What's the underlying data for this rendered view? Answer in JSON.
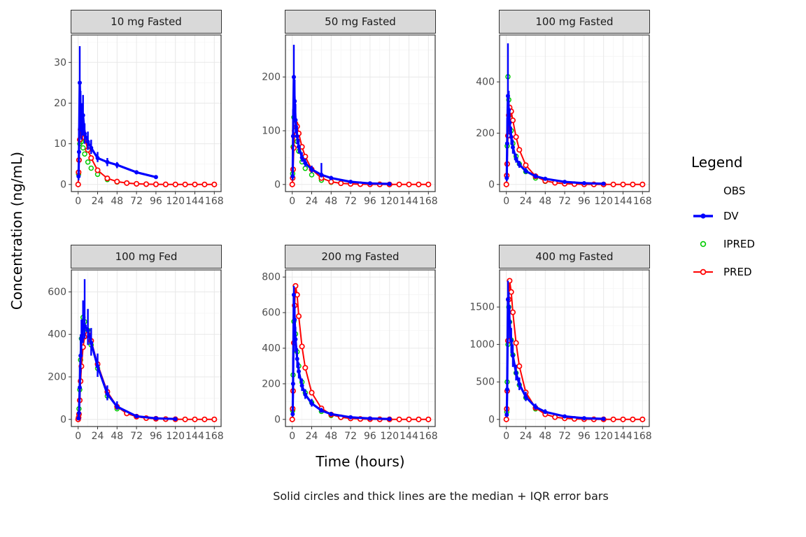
{
  "figure": {
    "y_axis_title": "Concentration (ng/mL)",
    "x_axis_title": "Time (hours)",
    "caption": "Solid circles and thick lines are the median + IQR error bars"
  },
  "legend": {
    "title": "Legend",
    "subtitle": "OBS",
    "entries": [
      {
        "label": "DV",
        "key": "dv",
        "style": "thick-line-filled-circle"
      },
      {
        "label": "IPRED",
        "key": "ipred",
        "style": "open-circle"
      },
      {
        "label": "PRED",
        "key": "pred",
        "style": "line-open-circle"
      }
    ]
  },
  "colors": {
    "dv": "#0000FF",
    "ipred": "#00CC00",
    "pred": "#FF0000",
    "panel_bg": "#FFFFFF",
    "strip_bg": "#D9D9D9",
    "grid_major": "#E8E8E8",
    "grid_minor": "#F4F4F4"
  },
  "chart_data": {
    "type": "line",
    "title": "",
    "xlabel": "Time (hours)",
    "ylabel": "Concentration (ng/mL)",
    "caption": "Solid circles and thick lines are the median + IQR error bars",
    "legend_position": "right",
    "grid": true,
    "x": {
      "lim": [
        0,
        168
      ],
      "ticks": [
        0,
        24,
        48,
        72,
        96,
        120,
        144,
        168
      ]
    },
    "series_meta": [
      {
        "name": "DV",
        "type": "median-with-iqr-errorbars",
        "color": "#0000FF"
      },
      {
        "name": "IPRED",
        "type": "points",
        "color": "#00CC00"
      },
      {
        "name": "PRED",
        "type": "line-with-open-points",
        "color": "#FF0000"
      }
    ],
    "panels": [
      {
        "title": "10 mg Fasted",
        "ylim": [
          0,
          35
        ],
        "yticks": [
          0,
          10,
          20,
          30
        ],
        "dv": {
          "t": [
            0.5,
            1,
            2,
            3,
            4,
            6,
            8,
            12,
            16,
            24,
            36,
            48,
            72,
            96
          ],
          "median": [
            2,
            8,
            25,
            17,
            15,
            17,
            12.5,
            10.5,
            9,
            6.5,
            5.5,
            4.8,
            3,
            1.8
          ],
          "iqr_lo": [
            1,
            5,
            18,
            13,
            11,
            12,
            10,
            8.5,
            7.5,
            5.5,
            4.5,
            4,
            2.5,
            1.4
          ],
          "iqr_hi": [
            3.5,
            14,
            34,
            23,
            20,
            22,
            15,
            13,
            11,
            8,
            6.5,
            5.5,
            3.5,
            2.2
          ]
        },
        "ipred": {
          "t": [
            0.5,
            1,
            2,
            3,
            4,
            6,
            8,
            12,
            16,
            24,
            36,
            48
          ],
          "y": [
            2.5,
            6,
            10,
            11,
            10.5,
            9,
            7.5,
            5.5,
            4,
            2.5,
            1.2,
            0.6
          ]
        },
        "pred": {
          "t": [
            0,
            0.5,
            1,
            2,
            3,
            4,
            6,
            8,
            12,
            16,
            24,
            36,
            48,
            60,
            72,
            84,
            96,
            108,
            120,
            132,
            144,
            156,
            168
          ],
          "y": [
            0,
            3,
            6,
            11,
            13.5,
            14,
            13,
            11.5,
            8.5,
            6.5,
            3.5,
            1.5,
            0.7,
            0.35,
            0.15,
            0.08,
            0.04,
            0.02,
            0.01,
            0,
            0,
            0,
            0
          ]
        }
      },
      {
        "title": "50 mg Fasted",
        "ylim": [
          0,
          265
        ],
        "yticks": [
          0,
          100,
          200
        ],
        "dv": {
          "t": [
            0.5,
            1,
            2,
            3,
            4,
            6,
            8,
            12,
            16,
            24,
            36,
            48,
            72,
            96,
            120
          ],
          "median": [
            15,
            90,
            200,
            155,
            120,
            90,
            70,
            50,
            40,
            28,
            18,
            12,
            5,
            2,
            1
          ],
          "iqr_lo": [
            8,
            60,
            150,
            120,
            95,
            75,
            58,
            42,
            33,
            22,
            13,
            9,
            3.5,
            1.2,
            0.6
          ],
          "iqr_hi": [
            25,
            140,
            260,
            195,
            150,
            110,
            85,
            60,
            48,
            35,
            40,
            16,
            8,
            3,
            1.6
          ]
        },
        "ipred": {
          "t": [
            0.5,
            1,
            2,
            3,
            4,
            6,
            8,
            12,
            16,
            24,
            36,
            48
          ],
          "y": [
            20,
            70,
            125,
            115,
            100,
            80,
            62,
            42,
            30,
            18,
            8,
            4
          ]
        },
        "pred": {
          "t": [
            0,
            0.5,
            1,
            2,
            3,
            4,
            6,
            8,
            12,
            16,
            24,
            36,
            48,
            60,
            72,
            84,
            96,
            108,
            120,
            132,
            144,
            156,
            168
          ],
          "y": [
            0,
            12,
            28,
            68,
            100,
            113,
            108,
            95,
            70,
            52,
            28,
            12,
            5,
            2.2,
            1,
            0.5,
            0.25,
            0.12,
            0.06,
            0,
            0,
            0,
            0
          ]
        }
      },
      {
        "title": "100 mg Fasted",
        "ylim": [
          0,
          555
        ],
        "yticks": [
          0,
          200,
          400
        ],
        "dv": {
          "t": [
            0.5,
            1,
            2,
            3,
            4,
            6,
            8,
            12,
            16,
            24,
            36,
            48,
            72,
            96,
            120
          ],
          "median": [
            25,
            160,
            345,
            290,
            240,
            185,
            145,
            100,
            78,
            52,
            32,
            22,
            10,
            5,
            3
          ],
          "iqr_lo": [
            12,
            110,
            260,
            235,
            195,
            155,
            120,
            85,
            65,
            42,
            25,
            16,
            7,
            3,
            1.8
          ],
          "iqr_hi": [
            45,
            260,
            550,
            365,
            295,
            225,
            175,
            120,
            92,
            65,
            42,
            30,
            15,
            8,
            5
          ]
        },
        "ipred": {
          "t": [
            0.5,
            1,
            2,
            3,
            4,
            6,
            8,
            12,
            16,
            24,
            36,
            48
          ],
          "y": [
            35,
            150,
            420,
            330,
            270,
            210,
            160,
            110,
            80,
            50,
            25,
            12
          ]
        },
        "pred": {
          "t": [
            0,
            0.5,
            1,
            2,
            3,
            4,
            6,
            8,
            12,
            16,
            24,
            36,
            48,
            60,
            72,
            84,
            96,
            108,
            120,
            132,
            144,
            156,
            168
          ],
          "y": [
            0,
            35,
            80,
            190,
            270,
            300,
            285,
            250,
            185,
            135,
            75,
            32,
            14,
            6.5,
            3,
            1.5,
            0.7,
            0.35,
            0.18,
            0,
            0,
            0,
            0
          ]
        }
      },
      {
        "title": "100 mg Fed",
        "ylim": [
          0,
          670
        ],
        "yticks": [
          0,
          200,
          400,
          600
        ],
        "dv": {
          "t": [
            0.5,
            1,
            2,
            3,
            4,
            6,
            8,
            12,
            16,
            24,
            36,
            48,
            72,
            96,
            120
          ],
          "median": [
            5,
            30,
            150,
            300,
            380,
            430,
            440,
            420,
            360,
            250,
            120,
            60,
            15,
            5,
            2
          ],
          "iqr_lo": [
            2,
            15,
            90,
            220,
            300,
            360,
            380,
            350,
            300,
            200,
            90,
            45,
            10,
            3,
            1.2
          ],
          "iqr_hi": [
            10,
            60,
            250,
            400,
            470,
            560,
            660,
            520,
            430,
            310,
            160,
            85,
            25,
            8,
            4
          ]
        },
        "ipred": {
          "t": [
            0.5,
            1,
            2,
            3,
            4,
            6,
            8,
            12,
            16,
            24,
            36,
            48
          ],
          "y": [
            10,
            50,
            140,
            280,
            380,
            480,
            460,
            420,
            350,
            240,
            110,
            50
          ]
        },
        "pred": {
          "t": [
            0,
            0.5,
            1,
            2,
            3,
            4,
            6,
            8,
            12,
            16,
            24,
            36,
            48,
            60,
            72,
            84,
            96,
            108,
            120,
            132,
            144,
            156,
            168
          ],
          "y": [
            0,
            8,
            25,
            90,
            180,
            250,
            340,
            390,
            400,
            370,
            260,
            130,
            60,
            28,
            13,
            6,
            3,
            1.4,
            0.7,
            0,
            0,
            0,
            0
          ]
        }
      },
      {
        "title": "200 mg Fasted",
        "ylim": [
          0,
          800
        ],
        "yticks": [
          0,
          200,
          400,
          600,
          800
        ],
        "dv": {
          "t": [
            0.5,
            1,
            2,
            3,
            4,
            6,
            8,
            12,
            16,
            24,
            36,
            48,
            72,
            96,
            120
          ],
          "median": [
            30,
            200,
            700,
            560,
            450,
            340,
            270,
            190,
            140,
            90,
            50,
            30,
            12,
            5,
            2.5
          ],
          "iqr_lo": [
            15,
            120,
            560,
            470,
            380,
            290,
            230,
            160,
            115,
            72,
            38,
            22,
            8,
            3,
            1.5
          ],
          "iqr_hi": [
            60,
            350,
            750,
            640,
            520,
            400,
            320,
            230,
            170,
            115,
            65,
            42,
            18,
            8,
            4
          ]
        },
        "ipred": {
          "t": [
            0.5,
            1,
            2,
            3,
            4,
            6,
            8,
            12,
            16,
            24,
            36,
            48
          ],
          "y": [
            50,
            250,
            550,
            640,
            480,
            380,
            300,
            210,
            150,
            95,
            45,
            22
          ]
        },
        "pred": {
          "t": [
            0,
            0.5,
            1,
            2,
            3,
            4,
            6,
            8,
            12,
            16,
            24,
            36,
            48,
            60,
            72,
            84,
            96,
            108,
            120,
            132,
            144,
            156,
            168
          ],
          "y": [
            0,
            60,
            160,
            430,
            640,
            750,
            700,
            580,
            410,
            290,
            150,
            62,
            27,
            12,
            5.5,
            2.6,
            1.2,
            0.6,
            0.3,
            0,
            0,
            0,
            0
          ]
        }
      },
      {
        "title": "400 mg Fasted",
        "ylim": [
          0,
          1900
        ],
        "yticks": [
          0,
          500,
          1000,
          1500
        ],
        "dv": {
          "t": [
            0.5,
            1,
            2,
            3,
            4,
            6,
            8,
            12,
            16,
            24,
            36,
            48,
            72,
            96,
            120
          ],
          "median": [
            60,
            400,
            1600,
            1500,
            1300,
            1050,
            850,
            620,
            470,
            300,
            165,
            100,
            40,
            16,
            8
          ],
          "iqr_lo": [
            30,
            250,
            1250,
            1250,
            1080,
            880,
            700,
            520,
            390,
            245,
            130,
            78,
            28,
            10,
            5
          ],
          "iqr_hi": [
            120,
            700,
            1850,
            1700,
            1500,
            1220,
            1000,
            730,
            560,
            370,
            210,
            135,
            60,
            24,
            12
          ]
        },
        "ipred": {
          "t": [
            0.5,
            1,
            2,
            3,
            4,
            6,
            8,
            12,
            16,
            24,
            36,
            48
          ],
          "y": [
            100,
            500,
            1000,
            1500,
            1300,
            1060,
            860,
            620,
            460,
            290,
            140,
            70
          ]
        },
        "pred": {
          "t": [
            0,
            0.5,
            1,
            2,
            3,
            4,
            6,
            8,
            12,
            16,
            24,
            36,
            48,
            60,
            72,
            84,
            96,
            108,
            120,
            132,
            144,
            156,
            168
          ],
          "y": [
            0,
            140,
            380,
            1050,
            1600,
            1850,
            1700,
            1430,
            1020,
            710,
            360,
            155,
            68,
            30,
            14,
            6.5,
            3,
            1.5,
            0.7,
            0,
            0,
            0,
            0
          ]
        }
      }
    ]
  }
}
